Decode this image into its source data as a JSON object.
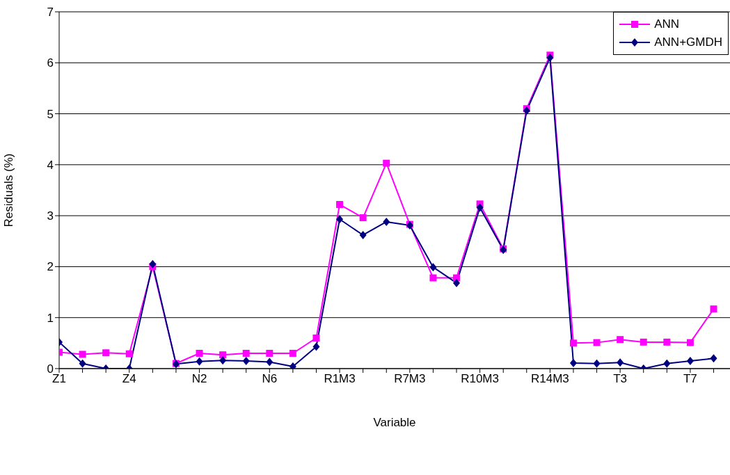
{
  "chart_data": {
    "type": "line",
    "xlabel": "Variable",
    "ylabel": "Residuals (%)",
    "categories": [
      "Z1",
      null,
      null,
      "Z4",
      null,
      null,
      "N2",
      null,
      null,
      "N6",
      null,
      null,
      "R1M3",
      null,
      null,
      "R7M3",
      null,
      null,
      "R10M3",
      null,
      null,
      "R14M3",
      null,
      null,
      "T3",
      null,
      null,
      "T7",
      null
    ],
    "series": [
      {
        "name": "ANN",
        "color": "#ff00ff",
        "marker": "square",
        "values": [
          0.32,
          0.28,
          0.31,
          0.29,
          2.0,
          0.1,
          0.3,
          0.27,
          0.3,
          0.3,
          0.3,
          0.6,
          3.22,
          2.96,
          4.03,
          2.83,
          1.78,
          1.78,
          3.23,
          2.35,
          5.1,
          6.15,
          0.5,
          0.51,
          0.57,
          0.52,
          0.52,
          0.51,
          1.17
        ]
      },
      {
        "name": "ANN+GMDH",
        "color": "#000080",
        "marker": "diamond",
        "values": [
          0.52,
          0.1,
          0.0,
          0.0,
          2.05,
          0.09,
          0.14,
          0.16,
          0.15,
          0.13,
          0.04,
          0.43,
          2.93,
          2.62,
          2.88,
          2.81,
          1.99,
          1.68,
          3.16,
          2.33,
          5.06,
          6.1,
          0.11,
          0.1,
          0.12,
          0.0,
          0.1,
          0.15,
          0.2
        ]
      }
    ],
    "ylim": [
      0,
      7
    ],
    "yticks": [
      0,
      1,
      2,
      3,
      4,
      5,
      6,
      7
    ],
    "grid": "y",
    "legend": "top right",
    "line_style": "solid"
  }
}
